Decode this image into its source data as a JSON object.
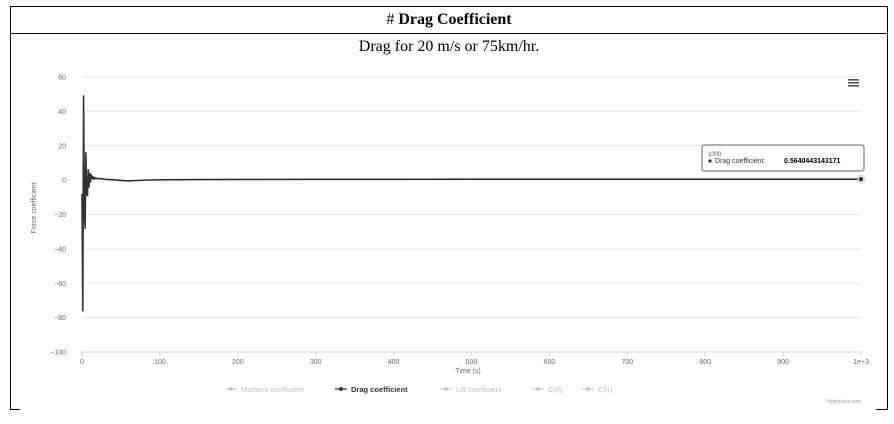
{
  "header": {
    "hash": "#",
    "title": "Drag Coefficient"
  },
  "caption": "Drag for 20 m/s or 75km/hr.",
  "chart_data": {
    "type": "line",
    "xlabel": "Time (s)",
    "ylabel": "Force coefficient",
    "xlim": [
      0,
      1000
    ],
    "ylim": [
      -100,
      60
    ],
    "x_ticks": [
      "0",
      "100",
      "200",
      "300",
      "400",
      "500",
      "600",
      "700",
      "800",
      "900",
      "1e+3"
    ],
    "y_ticks": [
      "60",
      "40",
      "20",
      "0",
      "−20",
      "−40",
      "−60",
      "−80",
      "−100"
    ],
    "grid": true,
    "legend_position": "bottom",
    "legend": [
      {
        "name": "Moment coefficient",
        "active": false
      },
      {
        "name": "Drag coefficient",
        "active": true
      },
      {
        "name": "Lift coefficient",
        "active": false
      },
      {
        "name": "Cl(f)",
        "active": false
      },
      {
        "name": "Cl(r)",
        "active": false
      }
    ],
    "series": [
      {
        "name": "Drag coefficient",
        "color": "#333333",
        "x": [
          0,
          1,
          2,
          3,
          4,
          5,
          6,
          7,
          8,
          9,
          10,
          11,
          12,
          13,
          14,
          15,
          16,
          17,
          18,
          19,
          20,
          22,
          24,
          26,
          30,
          40,
          60,
          80,
          100,
          150,
          200,
          300,
          400,
          500,
          600,
          700,
          800,
          900,
          1000
        ],
        "y": [
          -8,
          -76,
          49,
          -18,
          -28,
          16,
          -8,
          -9,
          6,
          -4,
          4,
          -1,
          3,
          1,
          2,
          0.5,
          1.5,
          1,
          1.2,
          0.8,
          1,
          0.8,
          0.9,
          0.7,
          0.5,
          0.2,
          -0.5,
          0,
          0.2,
          0.3,
          0.4,
          0.5,
          0.5,
          0.55,
          0.56,
          0.56,
          0.56,
          0.56,
          0.564
        ]
      }
    ],
    "tooltip": {
      "x_label": "1000",
      "series_label": "Drag coefficient:",
      "value": "0.5640443143171"
    },
    "menu_icon": "hamburger-menu-icon",
    "credits": "Highcharts.com"
  }
}
